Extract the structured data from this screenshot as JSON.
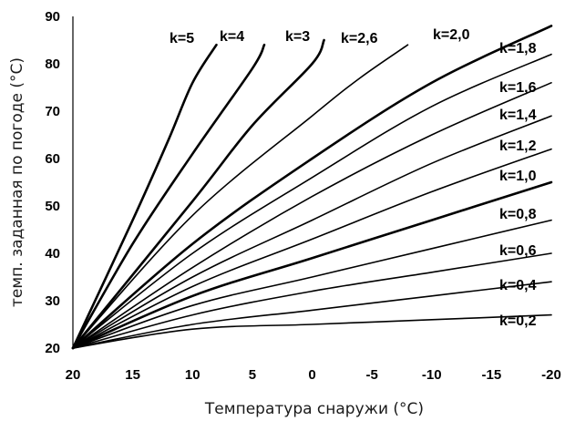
{
  "chart_data": {
    "type": "line",
    "xlabel": "Температура снаружи (°С)",
    "ylabel": "темп. заданная по погоде (°С)",
    "xlim": [
      20,
      -20
    ],
    "ylim": [
      20,
      90
    ],
    "x_ticks": [
      "20",
      "15",
      "10",
      "5",
      "0",
      "-5",
      "-10",
      "-15",
      "-20"
    ],
    "y_ticks": [
      "20",
      "30",
      "40",
      "50",
      "60",
      "70",
      "80",
      "90"
    ],
    "grid": false,
    "series": [
      {
        "name": "k=0,2",
        "points": [
          [
            20,
            20
          ],
          [
            10,
            24
          ],
          [
            0,
            25
          ],
          [
            -10,
            26
          ],
          [
            -20,
            27
          ]
        ]
      },
      {
        "name": "k=0,4",
        "points": [
          [
            20,
            20
          ],
          [
            10,
            25
          ],
          [
            0,
            28
          ],
          [
            -10,
            31
          ],
          [
            -20,
            34
          ]
        ]
      },
      {
        "name": "k=0,6",
        "points": [
          [
            20,
            20
          ],
          [
            10,
            27
          ],
          [
            0,
            32
          ],
          [
            -10,
            36
          ],
          [
            -20,
            40
          ]
        ]
      },
      {
        "name": "k=0,8",
        "points": [
          [
            20,
            20
          ],
          [
            10,
            29
          ],
          [
            0,
            35
          ],
          [
            -10,
            41
          ],
          [
            -20,
            47
          ]
        ]
      },
      {
        "name": "k=1,0",
        "points": [
          [
            20,
            20
          ],
          [
            10,
            31
          ],
          [
            0,
            39
          ],
          [
            -10,
            47
          ],
          [
            -20,
            55
          ]
        ]
      },
      {
        "name": "k=1,2",
        "points": [
          [
            20,
            20
          ],
          [
            10,
            33
          ],
          [
            0,
            43
          ],
          [
            -10,
            53
          ],
          [
            -20,
            62
          ]
        ]
      },
      {
        "name": "k=1,4",
        "points": [
          [
            20,
            20
          ],
          [
            10,
            35
          ],
          [
            0,
            47
          ],
          [
            -10,
            59
          ],
          [
            -20,
            69
          ]
        ]
      },
      {
        "name": "k=1,6",
        "points": [
          [
            20,
            20
          ],
          [
            10,
            37
          ],
          [
            0,
            52
          ],
          [
            -10,
            65
          ],
          [
            -20,
            76
          ]
        ]
      },
      {
        "name": "k=1,8",
        "points": [
          [
            20,
            20
          ],
          [
            10,
            40
          ],
          [
            0,
            56
          ],
          [
            -10,
            71
          ],
          [
            -20,
            82
          ]
        ]
      },
      {
        "name": "k=2,0",
        "points": [
          [
            20,
            20
          ],
          [
            10,
            42
          ],
          [
            0,
            60
          ],
          [
            -10,
            76
          ],
          [
            -20,
            88
          ]
        ]
      },
      {
        "name": "k=2,6",
        "points": [
          [
            20,
            20
          ],
          [
            10,
            48
          ],
          [
            0,
            69
          ],
          [
            -4,
            77
          ],
          [
            -8,
            84
          ]
        ]
      },
      {
        "name": "k=3",
        "points": [
          [
            20,
            20
          ],
          [
            10,
            51
          ],
          [
            5,
            67
          ],
          [
            0,
            80
          ],
          [
            -1,
            85
          ]
        ]
      },
      {
        "name": "k=4",
        "points": [
          [
            20,
            20
          ],
          [
            15,
            42
          ],
          [
            10,
            61
          ],
          [
            5,
            79
          ],
          [
            4,
            84
          ]
        ]
      },
      {
        "name": "k=5",
        "points": [
          [
            20,
            20
          ],
          [
            15,
            47
          ],
          [
            12,
            64
          ],
          [
            10,
            76
          ],
          [
            8,
            84
          ]
        ]
      }
    ]
  }
}
